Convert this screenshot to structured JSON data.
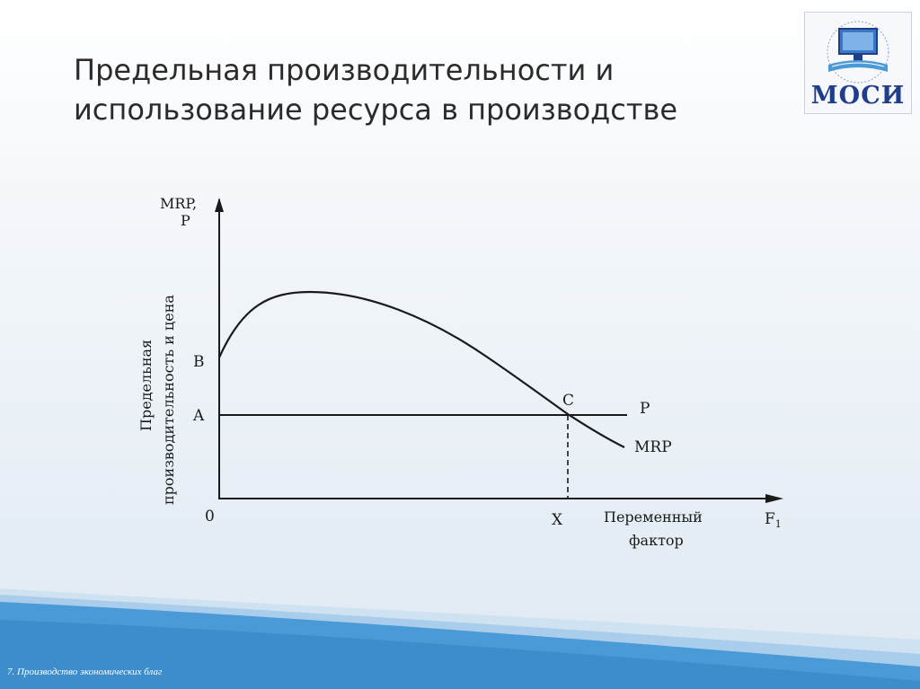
{
  "slide": {
    "title_line1": "Предельная производительности и",
    "title_line2": "использование ресурса в производстве",
    "footer": "7. Производство экономических благ"
  },
  "logo": {
    "text": "МОСИ",
    "icon": "computer-book-icon",
    "color": "#1f3d8a"
  },
  "diagram": {
    "y_axis_label_top": "MRP,",
    "y_axis_label_bottom": "P",
    "y_axis_title_line1": "Предельная",
    "y_axis_title_line2": "производительность и цена",
    "x_axis_title_line1": "Переменный",
    "x_axis_title_line2": "фактор",
    "x_axis_symbol": "F",
    "x_axis_symbol_sub": "1",
    "origin_label": "0",
    "point_b_label": "B",
    "point_a_label": "A",
    "point_c_label": "C",
    "point_x_label": "X",
    "price_line_label": "P",
    "mrp_curve_label": "MRP"
  },
  "colors": {
    "accent_blue": "#4a9ad8",
    "band_light": "#a9cdea",
    "ink": "#1a1a1a"
  }
}
